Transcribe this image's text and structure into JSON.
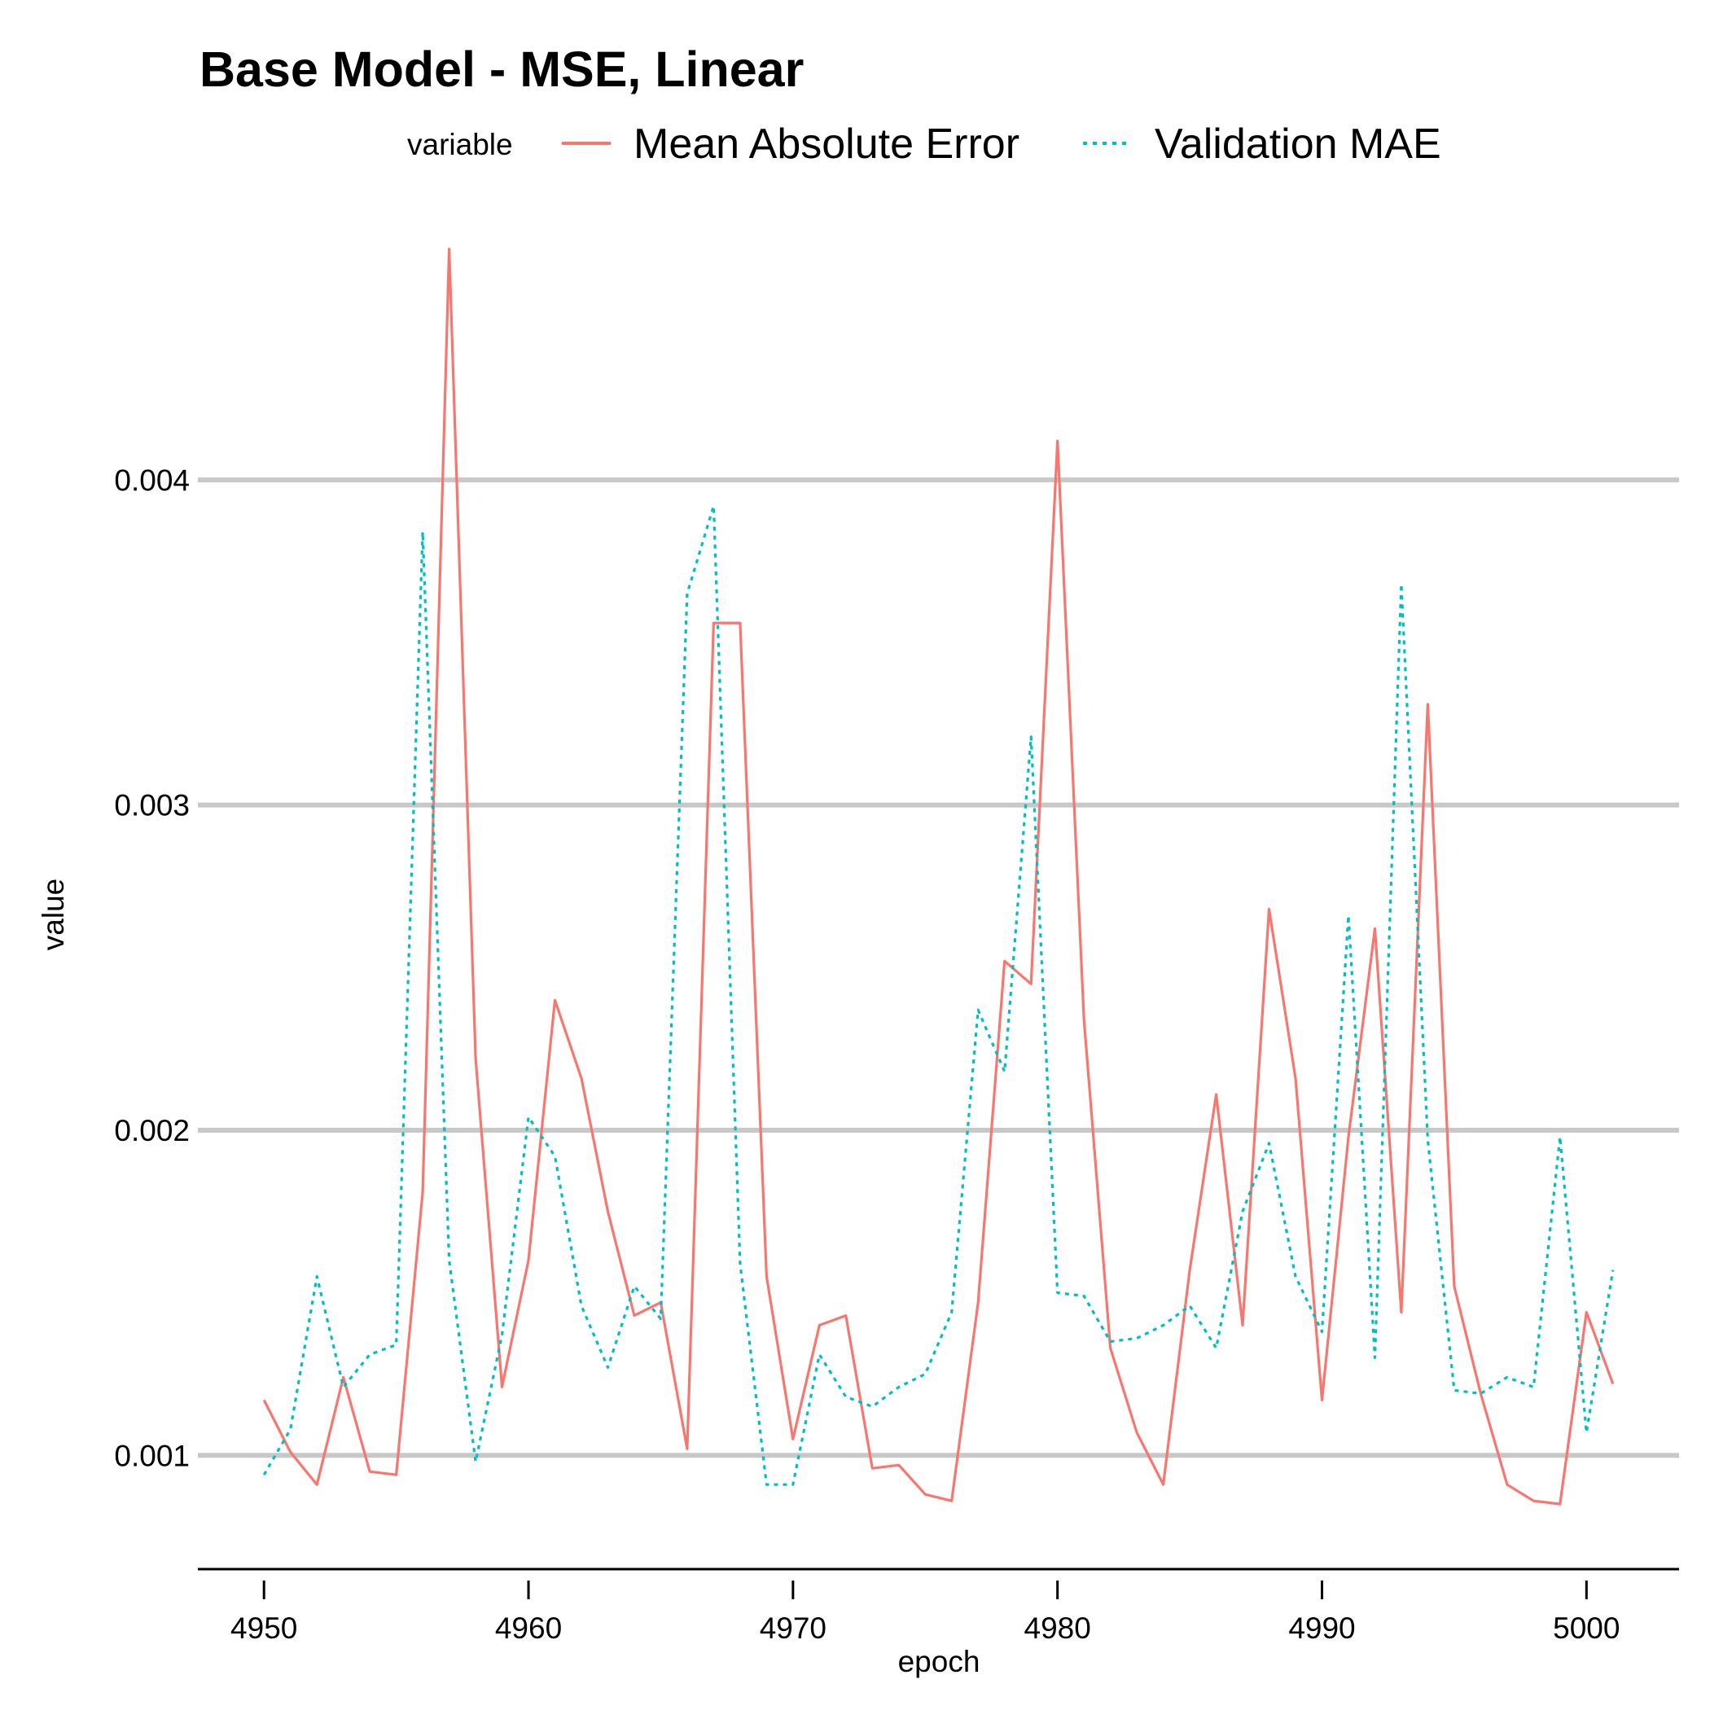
{
  "chart_data": {
    "type": "line",
    "title": "Base Model - MSE, Linear",
    "xlabel": "epoch",
    "ylabel": "value",
    "xlim": [
      4947.5,
      5003.5
    ],
    "ylim": [
      0.00065,
      0.00485
    ],
    "x_ticks": [
      4950,
      4960,
      4970,
      4980,
      4990,
      5000
    ],
    "y_ticks": [
      0.001,
      0.002,
      0.003,
      0.004
    ],
    "y_tick_labels": [
      "0.001",
      "0.002",
      "0.003",
      "0.004"
    ],
    "x_tick_labels": [
      "4950",
      "4960",
      "4970",
      "4980",
      "4990",
      "5000"
    ],
    "grid": "horizontal-major",
    "legend": {
      "title": "variable",
      "position": "top"
    },
    "x": [
      4950,
      4951,
      4952,
      4953,
      4954,
      4955,
      4956,
      4957,
      4958,
      4959,
      4960,
      4961,
      4962,
      4963,
      4964,
      4965,
      4966,
      4967,
      4968,
      4969,
      4970,
      4971,
      4972,
      4973,
      4974,
      4975,
      4976,
      4977,
      4978,
      4979,
      4980,
      4981,
      4982,
      4983,
      4984,
      4985,
      4986,
      4987,
      4988,
      4989,
      4990,
      4991,
      4992,
      4993,
      4994,
      4995,
      4996,
      4997,
      4998,
      4999,
      5000,
      5001
    ],
    "series": [
      {
        "name": "Mean Absolute Error",
        "color": "#F8766D",
        "dash": "solid",
        "values": [
          0.00117,
          0.00101,
          0.00091,
          0.00124,
          0.00095,
          0.00094,
          0.00181,
          0.00471,
          0.00222,
          0.00121,
          0.0016,
          0.0024,
          0.00216,
          0.00175,
          0.00143,
          0.00147,
          0.00102,
          0.00356,
          0.00356,
          0.00155,
          0.00105,
          0.0014,
          0.00143,
          0.00096,
          0.00097,
          0.00088,
          0.00086,
          0.00147,
          0.00252,
          0.00245,
          0.00412,
          0.00234,
          0.00133,
          0.00107,
          0.00091,
          0.00157,
          0.00211,
          0.0014,
          0.00268,
          0.00216,
          0.00117,
          0.00198,
          0.00262,
          0.00144,
          0.00331,
          0.00152,
          0.00119,
          0.00091,
          0.00086,
          0.00085,
          0.00144,
          0.00122
        ]
      },
      {
        "name": "Validation MAE",
        "color": "#00BFC4",
        "dash": "dotted",
        "values": [
          0.00094,
          0.00108,
          0.00155,
          0.00121,
          0.00131,
          0.00134,
          0.00384,
          0.0016,
          0.00098,
          0.00137,
          0.00204,
          0.00192,
          0.00146,
          0.00127,
          0.00152,
          0.00142,
          0.00365,
          0.00392,
          0.00159,
          0.00091,
          0.00091,
          0.00131,
          0.00118,
          0.00115,
          0.00121,
          0.00125,
          0.00144,
          0.00237,
          0.00218,
          0.00321,
          0.0015,
          0.00149,
          0.00135,
          0.00136,
          0.0014,
          0.00146,
          0.00133,
          0.00175,
          0.00196,
          0.00155,
          0.00138,
          0.00266,
          0.0013,
          0.00368,
          0.00197,
          0.0012,
          0.00119,
          0.00124,
          0.00121,
          0.00198,
          0.00107,
          0.00157
        ]
      }
    ]
  }
}
